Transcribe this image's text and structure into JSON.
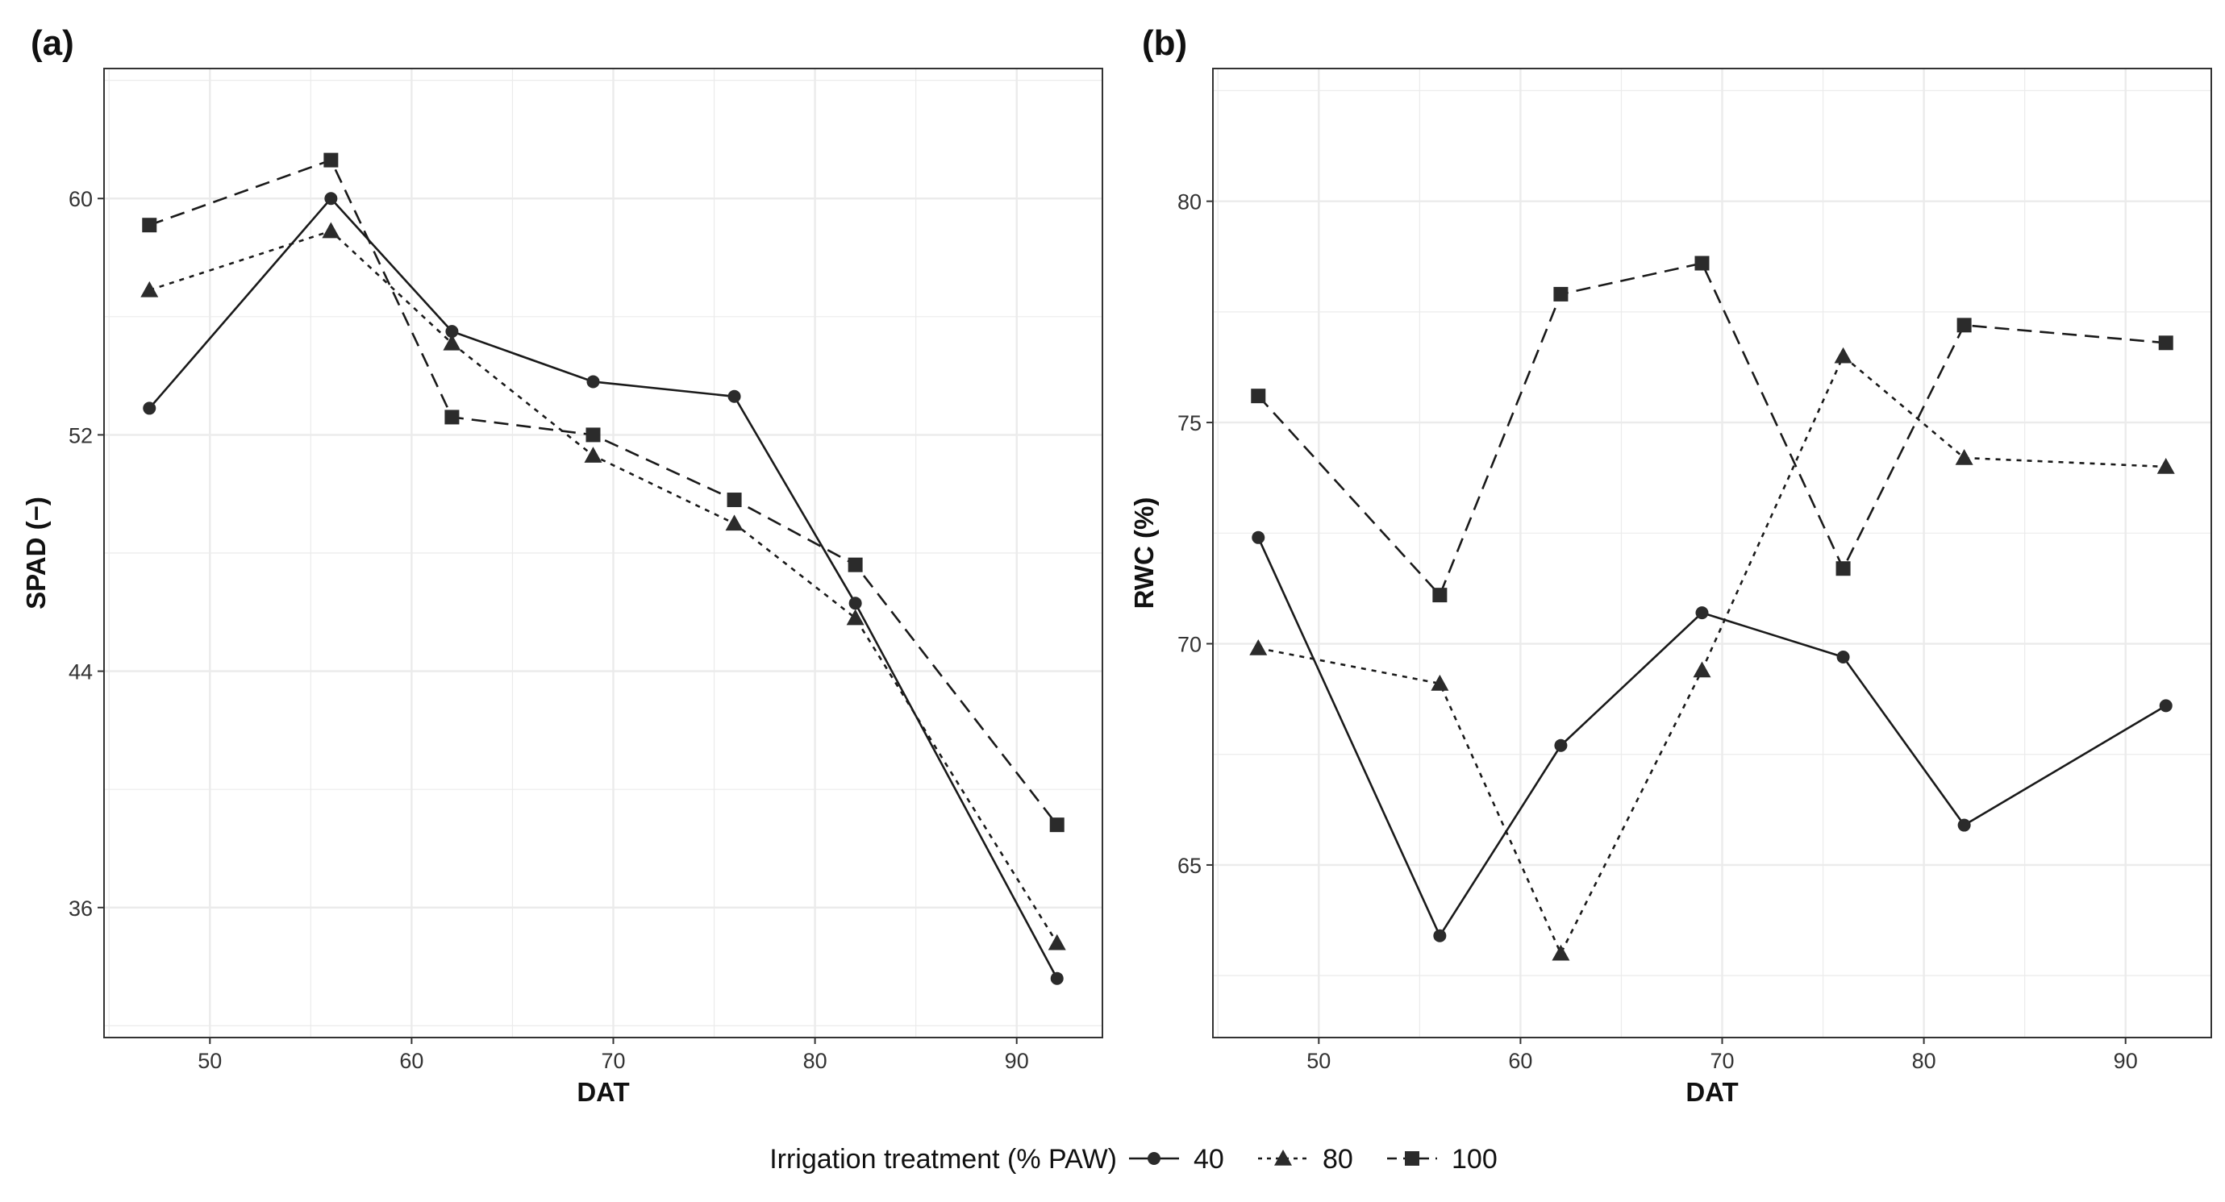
{
  "legend": {
    "title": "Irrigation treatment (% PAW)",
    "entries": [
      {
        "label": "40",
        "marker": "circle",
        "dash": "solid"
      },
      {
        "label": "80",
        "marker": "triangle",
        "dash": "dotted"
      },
      {
        "label": "100",
        "marker": "square",
        "dash": "dashed"
      }
    ]
  },
  "colors": {
    "line": "#1a1a1a",
    "marker": "#2b2b2b",
    "grid": "#ebebeb",
    "frame": "#333333"
  },
  "chart_data": [
    {
      "type": "line",
      "panel": "(a)",
      "xlabel": "DAT",
      "ylabel": "SPAD (−)",
      "xlim": [
        44.75,
        94.25
      ],
      "ylim": [
        31.6,
        64.4
      ],
      "xticks": [
        50,
        60,
        70,
        80,
        90
      ],
      "yticks": [
        36,
        44,
        52,
        60
      ],
      "x": [
        47,
        56,
        62,
        69,
        76,
        82,
        92
      ],
      "series": [
        {
          "name": "40",
          "values": [
            52.9,
            60.0,
            55.5,
            53.8,
            53.3,
            46.3,
            33.6
          ]
        },
        {
          "name": "80",
          "values": [
            56.9,
            58.9,
            55.1,
            51.3,
            49.0,
            45.8,
            34.8
          ]
        },
        {
          "name": "100",
          "values": [
            59.1,
            61.3,
            52.6,
            52.0,
            49.8,
            47.6,
            38.8
          ]
        }
      ]
    },
    {
      "type": "line",
      "panel": "(b)",
      "xlabel": "DAT",
      "ylabel": "RWC (%)",
      "xlim": [
        44.75,
        94.25
      ],
      "ylim": [
        61.1,
        83.0
      ],
      "xticks": [
        50,
        60,
        70,
        80,
        90
      ],
      "yticks": [
        65,
        70,
        75,
        80
      ],
      "x": [
        47,
        56,
        62,
        69,
        76,
        82,
        92
      ],
      "series": [
        {
          "name": "40",
          "values": [
            72.4,
            63.4,
            67.7,
            70.7,
            69.7,
            65.9,
            68.6
          ]
        },
        {
          "name": "80",
          "values": [
            69.9,
            69.1,
            63.0,
            69.4,
            76.5,
            74.2,
            74.0
          ]
        },
        {
          "name": "100",
          "values": [
            75.6,
            71.1,
            77.9,
            78.6,
            71.7,
            77.2,
            76.8
          ]
        }
      ]
    }
  ]
}
